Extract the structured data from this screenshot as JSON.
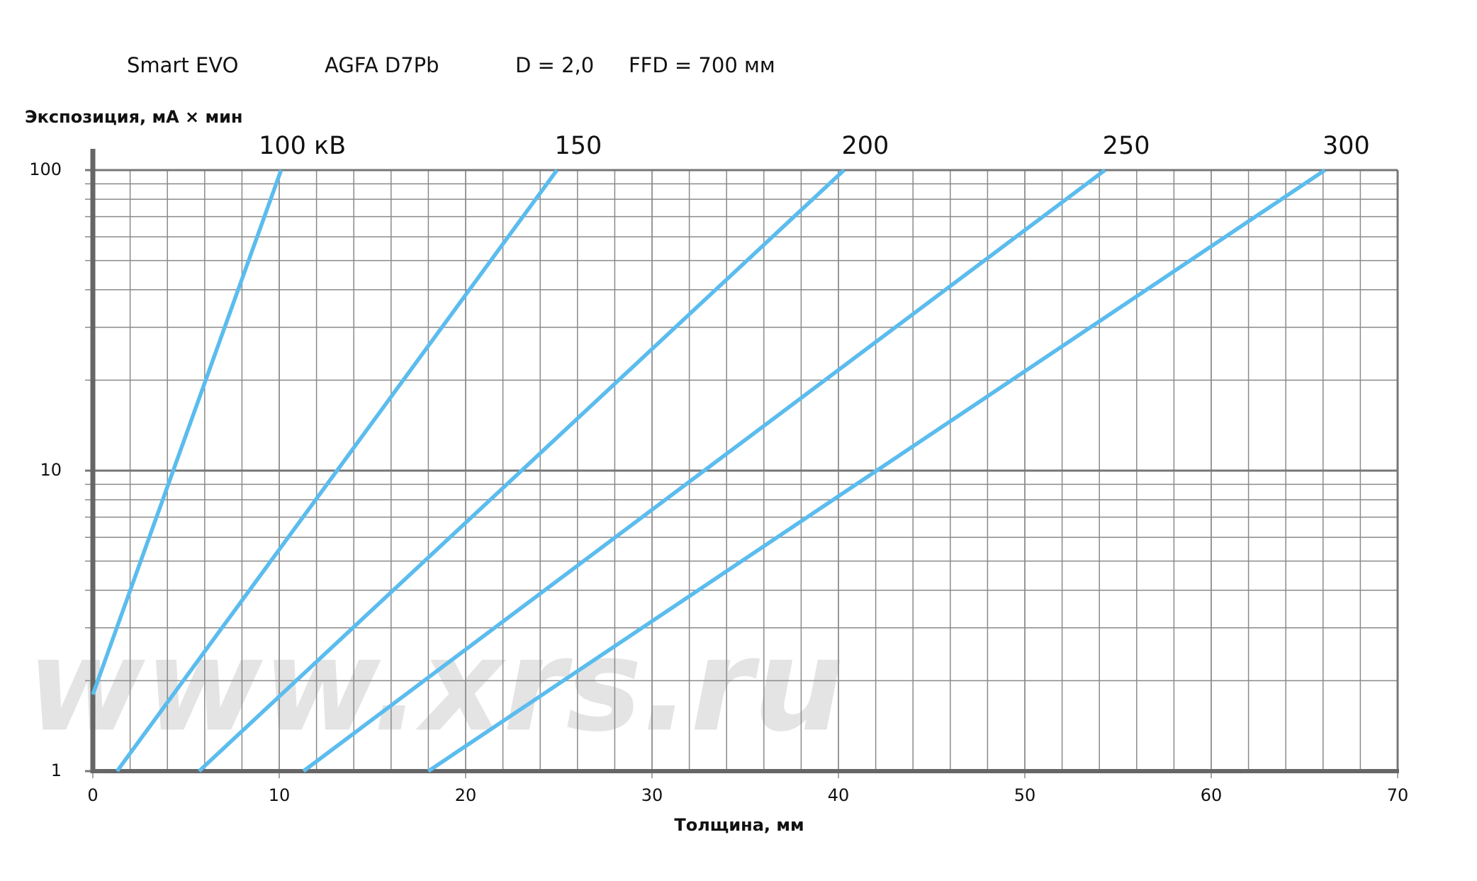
{
  "chart_data": {
    "type": "line",
    "subtitles": [
      "Smart EVO",
      "AGFA D7Pb",
      "D = 2,0",
      "FFD = 700 мм"
    ],
    "y_label": "Экспозиция, мА × мин",
    "x_label": "Толщина, мм",
    "watermark": "www.xrs.ru",
    "ylog": true,
    "xlim": [
      0,
      70
    ],
    "xticks": [
      0,
      10,
      20,
      30,
      40,
      50,
      60,
      70
    ],
    "xgrid": [
      2,
      4,
      6,
      8,
      10,
      12,
      14,
      16,
      18,
      20,
      22,
      24,
      26,
      28,
      30,
      32,
      34,
      36,
      38,
      40,
      42,
      44,
      46,
      48,
      50,
      52,
      54,
      56,
      58,
      60,
      62,
      64,
      66,
      68
    ],
    "ylim": [
      1,
      100
    ],
    "yticks": [
      1,
      10,
      100
    ],
    "ygrid": [
      2,
      3,
      4,
      5,
      6,
      7,
      8,
      9,
      20,
      30,
      40,
      50,
      60,
      70,
      80,
      90
    ],
    "series": [
      {
        "name": "100 кВ",
        "color": "#5bbcee",
        "x": [
          0,
          10.1
        ],
        "values": [
          1.8,
          100
        ]
      },
      {
        "name": "150",
        "color": "#5bbcee",
        "x": [
          1.3,
          24.9
        ],
        "values": [
          1,
          100
        ]
      },
      {
        "name": "200",
        "color": "#5bbcee",
        "x": [
          5.7,
          40.3
        ],
        "values": [
          1,
          100
        ]
      },
      {
        "name": "250",
        "color": "#5bbcee",
        "x": [
          11.3,
          54.3
        ],
        "values": [
          1,
          100
        ]
      },
      {
        "name": "300",
        "color": "#5bbcee",
        "x": [
          18.0,
          66.1
        ],
        "values": [
          1,
          100
        ]
      }
    ]
  }
}
